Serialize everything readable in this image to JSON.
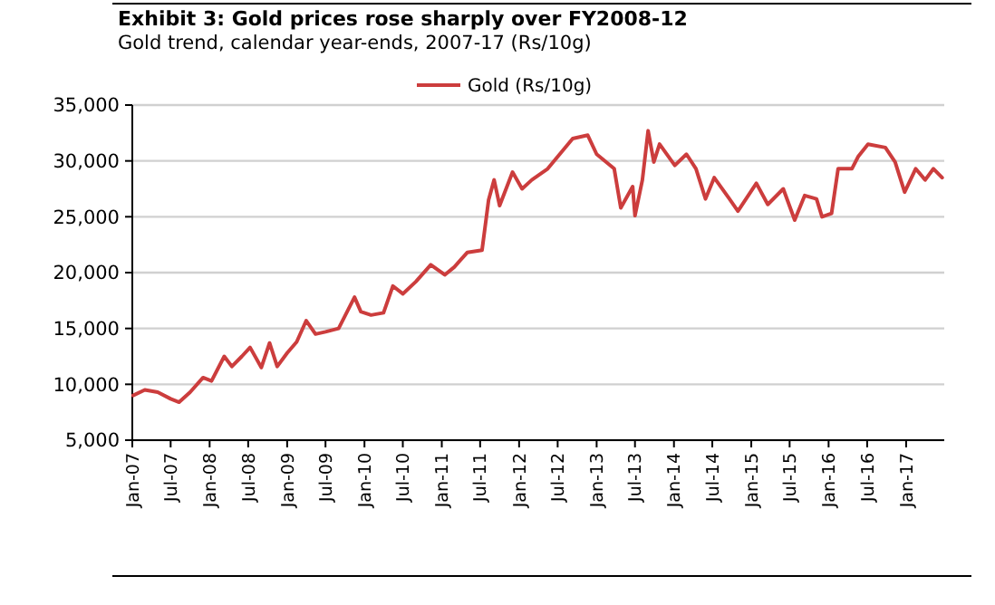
{
  "chart_data": {
    "type": "line",
    "title": "Exhibit 3: Gold prices rose sharply over FY2008-12",
    "subtitle": "Gold trend, calendar year-ends, 2007-17 (Rs/10g)",
    "x": [
      "2007-01-05",
      "2007-03-01",
      "2007-05-01",
      "2007-07-01",
      "2007-08-10",
      "2007-10-01",
      "2007-12-01",
      "2008-01-10",
      "2008-03-10",
      "2008-04-15",
      "2008-06-01",
      "2008-07-10",
      "2008-09-01",
      "2008-10-10",
      "2008-11-15",
      "2009-01-01",
      "2009-02-15",
      "2009-04-01",
      "2009-05-15",
      "2009-07-01",
      "2009-09-01",
      "2009-11-15",
      "2009-12-15",
      "2010-02-01",
      "2010-04-01",
      "2010-05-15",
      "2010-07-01",
      "2010-09-01",
      "2010-11-10",
      "2011-01-15",
      "2011-03-01",
      "2011-05-01",
      "2011-07-10",
      "2011-08-10",
      "2011-09-05",
      "2011-10-01",
      "2011-12-01",
      "2012-01-15",
      "2012-03-01",
      "2012-05-15",
      "2012-09-10",
      "2012-11-20",
      "2013-01-01",
      "2013-03-25",
      "2013-04-25",
      "2013-06-20",
      "2013-07-01",
      "2013-08-05",
      "2013-09-01",
      "2013-09-28",
      "2013-10-25",
      "2014-01-05",
      "2014-03-01",
      "2014-04-15",
      "2014-05-30",
      "2014-07-10",
      "2014-09-20",
      "2014-10-30",
      "2015-01-25",
      "2015-03-20",
      "2015-06-01",
      "2015-07-25",
      "2015-09-10",
      "2015-11-05",
      "2015-12-01",
      "2016-01-15",
      "2016-02-15",
      "2016-04-20",
      "2016-05-20",
      "2016-07-05",
      "2016-09-25",
      "2016-11-10",
      "2016-12-25",
      "2017-02-15",
      "2017-04-01",
      "2017-05-10",
      "2017-06-20"
    ],
    "series": [
      {
        "name": "Gold (Rs/10g)",
        "color": "#cc3d3d",
        "values": [
          9000,
          9500,
          9300,
          8700,
          8400,
          9300,
          10600,
          10300,
          12500,
          11600,
          12500,
          13300,
          11500,
          13700,
          11600,
          12800,
          13800,
          15700,
          14500,
          14700,
          15000,
          17800,
          16500,
          16200,
          16400,
          18800,
          18100,
          19200,
          20700,
          19800,
          20500,
          21800,
          22000,
          26500,
          28300,
          26000,
          29000,
          27500,
          28300,
          29300,
          32000,
          32300,
          30600,
          29300,
          25800,
          27700,
          25100,
          28300,
          32700,
          29900,
          31500,
          29600,
          30600,
          29300,
          26600,
          28500,
          26600,
          25500,
          28000,
          26100,
          27500,
          24700,
          26900,
          26600,
          25000,
          25300,
          29300,
          29300,
          30400,
          31500,
          31200,
          29900,
          27200,
          29300,
          28300,
          29300,
          28500
        ]
      }
    ],
    "xlim": [
      "2007-01-01",
      "2017-06-30"
    ],
    "xticks": [
      {
        "value": "2007-01",
        "label": "Jan-07"
      },
      {
        "value": "2007-07",
        "label": "Jul-07"
      },
      {
        "value": "2008-01",
        "label": "Jan-08"
      },
      {
        "value": "2008-07",
        "label": "Jul-08"
      },
      {
        "value": "2009-01",
        "label": "Jan-09"
      },
      {
        "value": "2009-07",
        "label": "Jul-09"
      },
      {
        "value": "2010-01",
        "label": "Jan-10"
      },
      {
        "value": "2010-07",
        "label": "Jul-10"
      },
      {
        "value": "2011-01",
        "label": "Jan-11"
      },
      {
        "value": "2011-07",
        "label": "Jul-11"
      },
      {
        "value": "2012-01",
        "label": "Jan-12"
      },
      {
        "value": "2012-07",
        "label": "Jul-12"
      },
      {
        "value": "2013-01",
        "label": "Jan-13"
      },
      {
        "value": "2013-07",
        "label": "Jul-13"
      },
      {
        "value": "2014-01",
        "label": "Jan-14"
      },
      {
        "value": "2014-07",
        "label": "Jul-14"
      },
      {
        "value": "2015-01",
        "label": "Jan-15"
      },
      {
        "value": "2015-07",
        "label": "Jul-15"
      },
      {
        "value": "2016-01",
        "label": "Jan-16"
      },
      {
        "value": "2016-07",
        "label": "Jul-16"
      },
      {
        "value": "2017-01",
        "label": "Jan-17"
      }
    ],
    "ylim": [
      5000,
      35000
    ],
    "yticks": [
      {
        "value": 5000,
        "label": "5,000"
      },
      {
        "value": 10000,
        "label": "10,000"
      },
      {
        "value": 15000,
        "label": "15,000"
      },
      {
        "value": 20000,
        "label": "20,000"
      },
      {
        "value": 25000,
        "label": "25,000"
      },
      {
        "value": 30000,
        "label": "30,000"
      },
      {
        "value": 35000,
        "label": "35,000"
      }
    ],
    "grid": "y",
    "legend": "top",
    "marker": "none",
    "line_style": "solid"
  }
}
